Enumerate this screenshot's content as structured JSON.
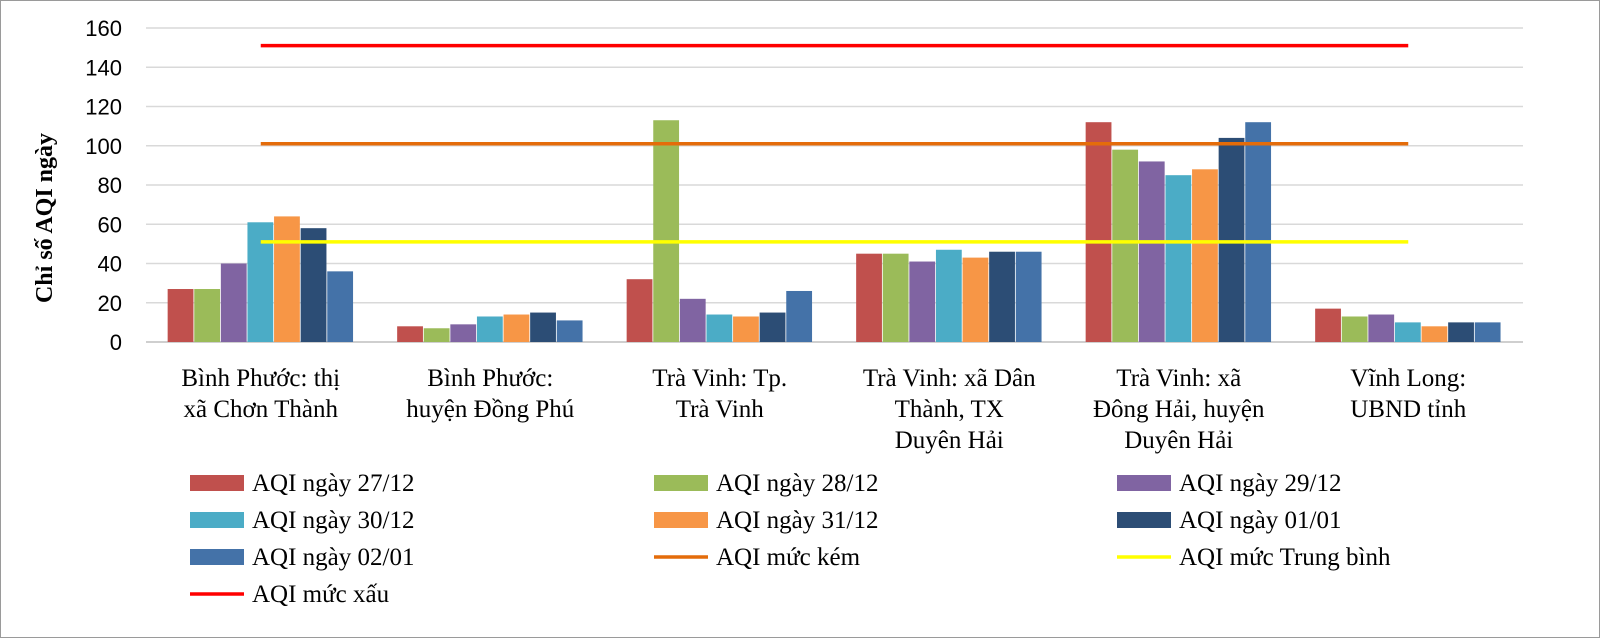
{
  "chart_data": {
    "type": "bar",
    "ylabel": "Chỉ số AQI ngày",
    "xlabel": "",
    "ylim": [
      0,
      160
    ],
    "yticks": [
      "0",
      "20",
      "40",
      "60",
      "80",
      "100",
      "120",
      "140",
      "160"
    ],
    "grid": true,
    "legend_position": "bottom",
    "categories": [
      [
        "Bình Phước: thị",
        "xã Chơn Thành"
      ],
      [
        "Bình Phước:",
        "huyện Đồng Phú"
      ],
      [
        "Trà Vinh: Tp.",
        "Trà Vinh"
      ],
      [
        "Trà Vinh: xã Dân",
        "Thành, TX",
        "Duyên Hải"
      ],
      [
        "Trà Vinh: xã",
        "Đông Hải, huyện",
        "Duyên Hải"
      ],
      [
        "Vĩnh Long:",
        "UBND tỉnh"
      ]
    ],
    "series": [
      {
        "name": "AQI ngày 27/12",
        "color": "#c0504d",
        "values": [
          27,
          8,
          32,
          45,
          112,
          17
        ]
      },
      {
        "name": "AQI ngày 28/12",
        "color": "#9bbb59",
        "values": [
          27,
          7,
          113,
          45,
          98,
          13
        ]
      },
      {
        "name": "AQI ngày 29/12",
        "color": "#8064a2",
        "values": [
          40,
          9,
          22,
          41,
          92,
          14
        ]
      },
      {
        "name": "AQI ngày 30/12",
        "color": "#4bacc6",
        "values": [
          61,
          13,
          14,
          47,
          85,
          10
        ]
      },
      {
        "name": "AQI ngày 31/12",
        "color": "#f79646",
        "values": [
          64,
          14,
          13,
          43,
          88,
          8
        ]
      },
      {
        "name": "AQI ngày 01/01",
        "color": "#2c4d75",
        "values": [
          58,
          15,
          15,
          46,
          104,
          10
        ]
      },
      {
        "name": "AQI ngày 02/01",
        "color": "#4472a8",
        "values": [
          36,
          11,
          26,
          46,
          112,
          10
        ]
      }
    ],
    "reference_lines": [
      {
        "name": "AQI mức kém",
        "color": "#e46c0a",
        "value": 101
      },
      {
        "name": "AQI mức Trung bình",
        "color": "#ffff00",
        "value": 51
      },
      {
        "name": "AQI mức xấu",
        "color": "#ff0000",
        "value": 151
      }
    ],
    "legend_order": [
      "AQI ngày 27/12",
      "AQI ngày 28/12",
      "AQI ngày 29/12",
      "AQI ngày 30/12",
      "AQI ngày 31/12",
      "AQI ngày 01/01",
      "AQI ngày 02/01",
      "AQI mức kém",
      "AQI mức Trung bình",
      "AQI mức xấu"
    ]
  }
}
